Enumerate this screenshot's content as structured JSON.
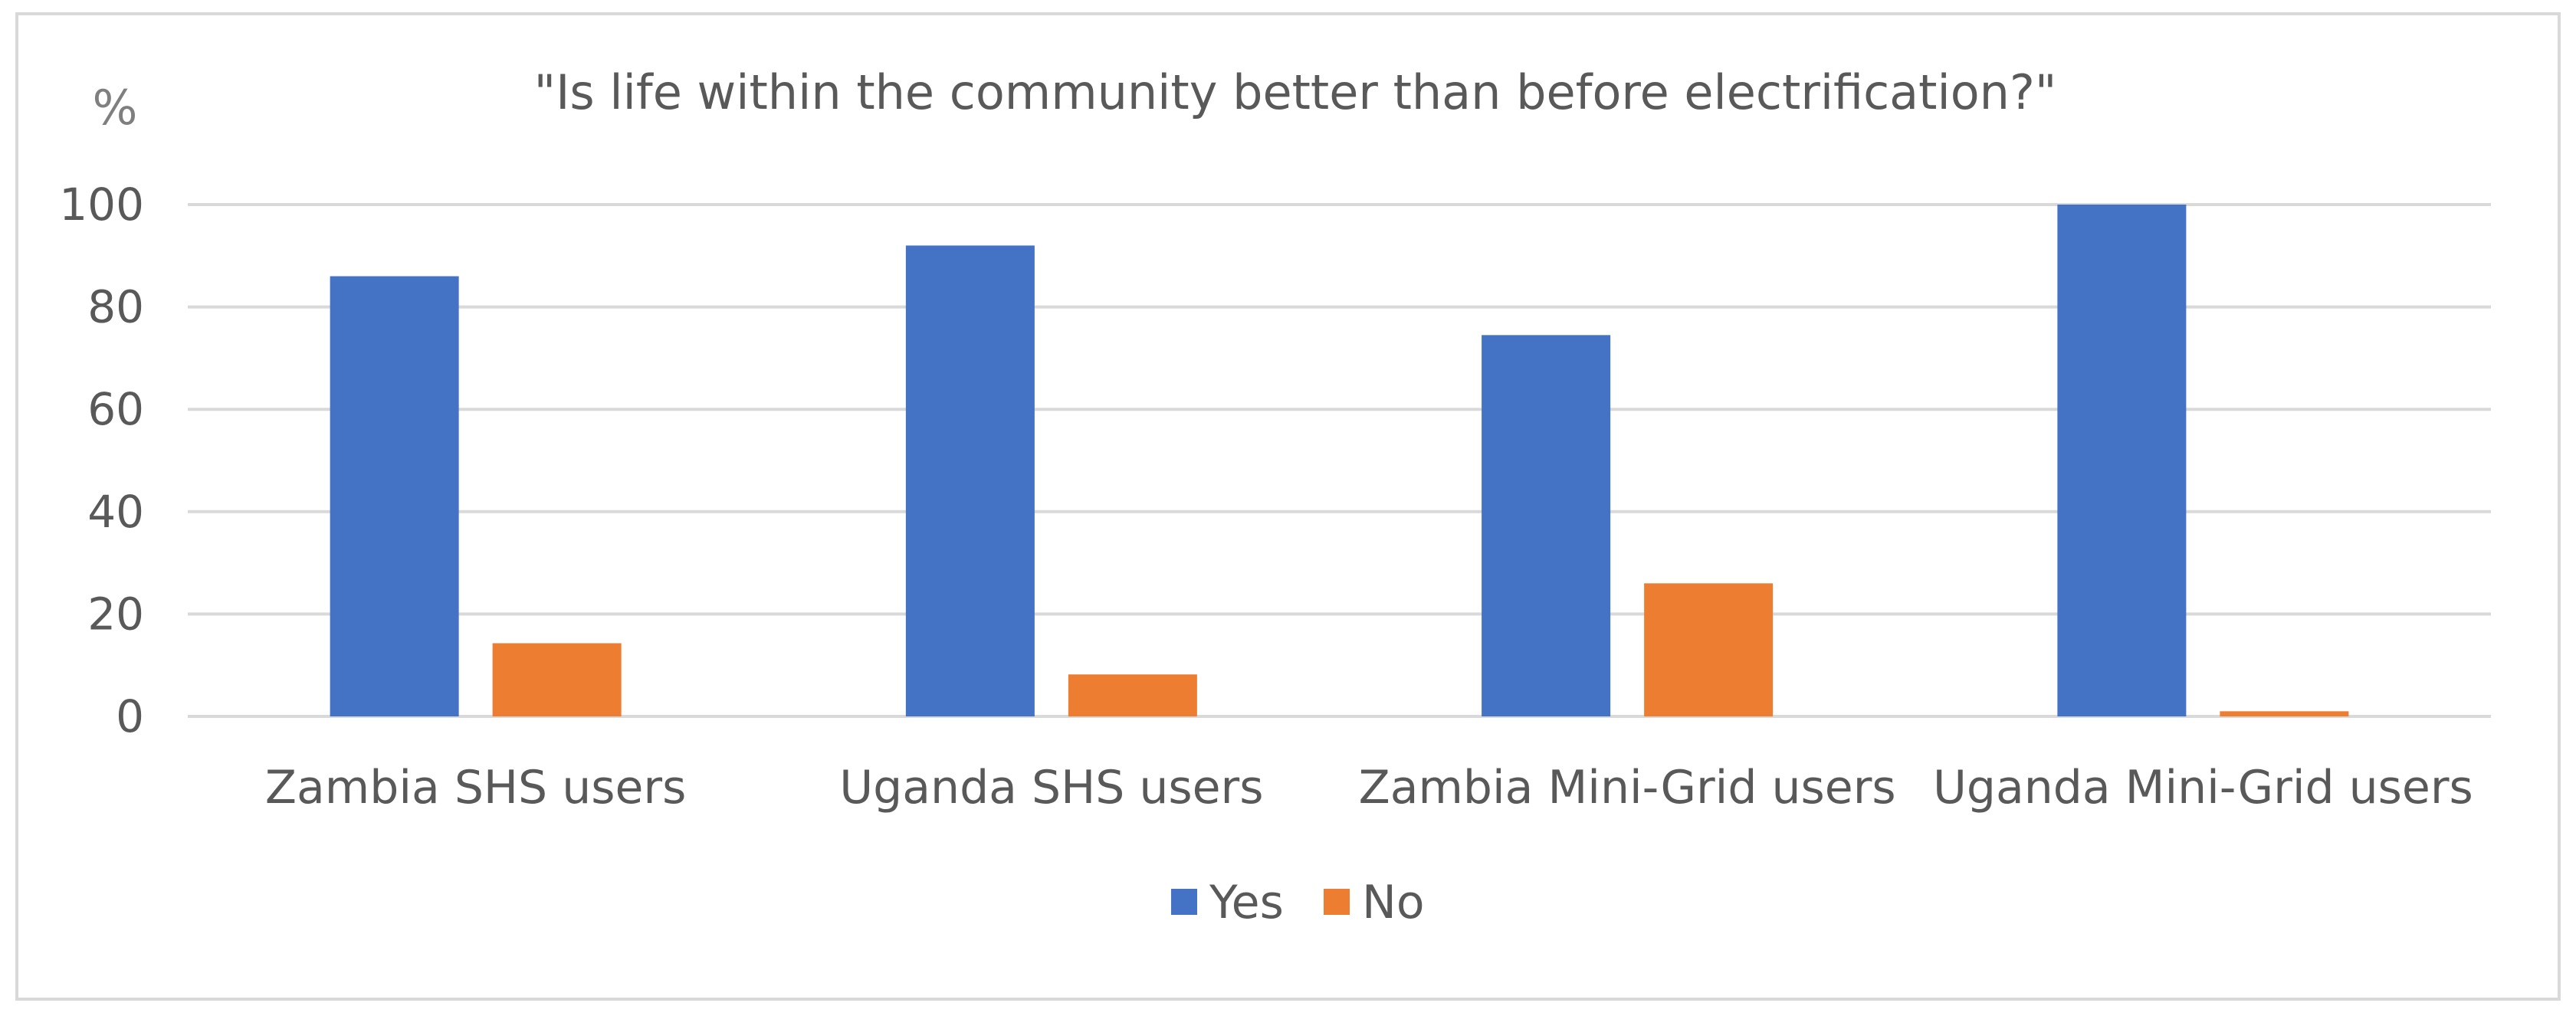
{
  "chart_data": {
    "type": "bar",
    "title": "\"Is life within the community better than before electrification?\"",
    "ylabel": "%",
    "xlabel": "",
    "categories": [
      "Zambia SHS users",
      "Uganda SHS users",
      "Zambia Mini-Grid users",
      "Uganda Mini-Grid users"
    ],
    "series": [
      {
        "name": "Yes",
        "color": "#4472C4",
        "values": [
          86,
          92,
          74.5,
          100
        ]
      },
      {
        "name": "No",
        "color": "#ED7D31",
        "values": [
          14.3,
          8.2,
          26,
          1
        ]
      }
    ],
    "ylim": [
      0,
      100
    ],
    "yticks": [
      0,
      20,
      40,
      60,
      80,
      100
    ],
    "grid": true,
    "legend": "bottom-center"
  }
}
